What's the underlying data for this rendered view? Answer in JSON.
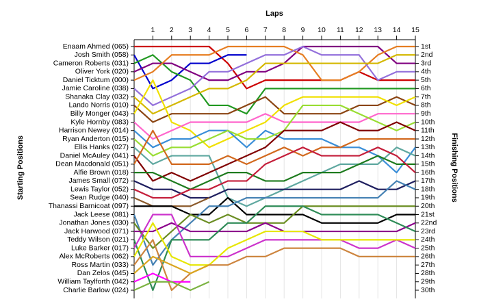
{
  "chart_data": {
    "type": "line",
    "title": "Laps",
    "y_label": "Starting Positions",
    "y2_label": "Finishing Positions",
    "categories": [
      null,
      "1",
      "2",
      "3",
      "4",
      "5",
      "6",
      "7",
      "8",
      "9",
      "10",
      "11",
      "12",
      "13",
      "14",
      "15"
    ],
    "ylim": [
      1,
      30
    ],
    "inverted": true,
    "grid": true,
    "y2ticks": [
      {
        "value": 1,
        "label": "1st"
      },
      {
        "value": 2,
        "label": "2nd"
      },
      {
        "value": 3,
        "label": "3rd"
      },
      {
        "value": 4,
        "label": "4th"
      },
      {
        "value": 5,
        "label": "5th"
      },
      {
        "value": 6,
        "label": "6th"
      },
      {
        "value": 7,
        "label": "7th"
      },
      {
        "value": 8,
        "label": "8th"
      },
      {
        "value": 9,
        "label": "9th"
      },
      {
        "value": 10,
        "label": "10th"
      },
      {
        "value": 11,
        "label": "11th"
      },
      {
        "value": 12,
        "label": "12th"
      },
      {
        "value": 13,
        "label": "13th"
      },
      {
        "value": 14,
        "label": "14th"
      },
      {
        "value": 15,
        "label": "15th"
      },
      {
        "value": 16,
        "label": "16th"
      },
      {
        "value": 17,
        "label": "17th"
      },
      {
        "value": 18,
        "label": "18th"
      },
      {
        "value": 19,
        "label": "19th"
      },
      {
        "value": 20,
        "label": "20th"
      },
      {
        "value": 21,
        "label": "21st"
      },
      {
        "value": 22,
        "label": "22nd"
      },
      {
        "value": 23,
        "label": "23rd"
      },
      {
        "value": 24,
        "label": "24th"
      },
      {
        "value": 25,
        "label": "25th"
      },
      {
        "value": 26,
        "label": "26th"
      },
      {
        "value": 27,
        "label": "27th"
      },
      {
        "value": 28,
        "label": "28th"
      },
      {
        "value": 29,
        "label": "29th"
      },
      {
        "value": 30,
        "label": "30th"
      }
    ],
    "series": [
      {
        "name": "Enaam Ahmed (065)",
        "color": "#cc0000",
        "values": [
          1,
          1,
          1,
          1,
          1,
          3,
          6,
          5,
          5,
          5,
          5,
          5,
          4,
          5,
          5,
          5
        ]
      },
      {
        "name": "Josh Smith (058)",
        "color": "#0000cc",
        "values": [
          2,
          6,
          5,
          3,
          3,
          2,
          2,
          null,
          null,
          null,
          null,
          null,
          null,
          null,
          null,
          null
        ]
      },
      {
        "name": "Cameron Roberts (031)",
        "color": "#229922",
        "values": [
          3,
          2,
          4,
          5,
          8,
          8,
          9,
          6,
          6,
          6,
          6,
          6,
          6,
          6,
          6,
          6
        ]
      },
      {
        "name": "Oliver York (020)",
        "color": "#800080",
        "values": [
          4,
          3,
          3,
          4,
          5,
          5,
          4,
          4,
          3,
          1,
          1,
          1,
          1,
          1,
          3,
          3
        ]
      },
      {
        "name": "Daniel Ticktum (000)",
        "color": "#e67e22",
        "values": [
          5,
          4,
          2,
          2,
          2,
          1,
          1,
          1,
          1,
          2,
          5,
          5,
          4,
          2,
          1,
          1
        ]
      },
      {
        "name": "Jamie Caroline (038)",
        "color": "#9370db",
        "values": [
          6,
          8,
          7,
          6,
          4,
          4,
          3,
          2,
          2,
          1,
          2,
          2,
          2,
          5,
          4,
          4
        ]
      },
      {
        "name": "Shanaka Clay (032)",
        "color": "#d4b800",
        "values": [
          7,
          9,
          8,
          7,
          6,
          6,
          5,
          3,
          3,
          3,
          3,
          3,
          3,
          3,
          2,
          2
        ]
      },
      {
        "name": "Lando Norris (010)",
        "color": "#8b4513",
        "values": [
          8,
          10,
          9,
          9,
          9,
          9,
          8,
          7,
          9,
          9,
          9,
          9,
          8,
          8,
          7,
          8
        ]
      },
      {
        "name": "Billy Monger (043)",
        "color": "#f0e000",
        "values": [
          9,
          5,
          10,
          11,
          13,
          12,
          11,
          10,
          8,
          7,
          7,
          7,
          7,
          7,
          8,
          7
        ]
      },
      {
        "name": "Kyle Hornby (083)",
        "color": "#ff66cc",
        "values": [
          10,
          12,
          11,
          10,
          10,
          10,
          10,
          9,
          10,
          10,
          10,
          10,
          10,
          9,
          9,
          9
        ]
      },
      {
        "name": "Harrison Newey (014)",
        "color": "#3a8ed8",
        "values": [
          11,
          13,
          12,
          12,
          11,
          11,
          13,
          11,
          12,
          12,
          12,
          13,
          13,
          14,
          16,
          13
        ]
      },
      {
        "name": "Ryan Anderton (015)",
        "color": "#99dd33",
        "values": [
          12,
          14,
          13,
          13,
          12,
          11,
          12,
          12,
          11,
          8,
          8,
          8,
          9,
          10,
          11,
          10
        ]
      },
      {
        "name": "Ellis Hanks (027)",
        "color": "#5fa8a0",
        "values": [
          13,
          15,
          14,
          14,
          14,
          19,
          20,
          19,
          18,
          17,
          16,
          15,
          15,
          15,
          13,
          14
        ]
      },
      {
        "name": "Daniel McAuley (041)",
        "color": "#800000",
        "values": [
          14,
          17,
          16,
          17,
          16,
          15,
          14,
          13,
          11,
          11,
          11,
          10,
          11,
          11,
          10,
          11
        ]
      },
      {
        "name": "Dean Macdonald (051)",
        "color": "#d2691e",
        "values": [
          15,
          11,
          15,
          15,
          15,
          14,
          15,
          14,
          13,
          14,
          13,
          13,
          12,
          12,
          12,
          12
        ]
      },
      {
        "name": "Alfie Brown (018)",
        "color": "#1e7b1e",
        "values": [
          16,
          16,
          17,
          18,
          17,
          16,
          16,
          17,
          17,
          16,
          16,
          16,
          15,
          14,
          15,
          15
        ]
      },
      {
        "name": "James Small (072)",
        "color": "#1f1f5f",
        "values": [
          17,
          18,
          18,
          19,
          19,
          18,
          18,
          18,
          18,
          18,
          18,
          18,
          17,
          18,
          18,
          17
        ]
      },
      {
        "name": "Lewis Taylor (052)",
        "color": "#c41e3a",
        "values": [
          18,
          19,
          19,
          18,
          18,
          17,
          17,
          15,
          14,
          13,
          14,
          14,
          14,
          13,
          14,
          16
        ]
      },
      {
        "name": "Sean Rudge (040)",
        "color": "#8b5a2b",
        "values": [
          19,
          20,
          20,
          20,
          19,
          null,
          null,
          null,
          null,
          null,
          null,
          null,
          null,
          null,
          null,
          null
        ]
      },
      {
        "name": "Thanassi Barnicoat (097)",
        "color": "#000000",
        "values": [
          20,
          20,
          20,
          21,
          21,
          19,
          21,
          21,
          21,
          21,
          22,
          22,
          22,
          22,
          21,
          21
        ]
      },
      {
        "name": "Jack Leese (081)",
        "color": "#4682b4",
        "values": [
          21,
          27,
          24,
          22,
          20,
          20,
          19,
          19,
          19,
          19,
          19,
          19,
          19,
          19,
          17,
          18
        ]
      },
      {
        "name": "Jonathan Jones (030)",
        "color": "#6b8e23",
        "values": [
          22,
          25,
          23,
          21,
          22,
          21,
          22,
          22,
          22,
          20,
          20,
          20,
          20,
          20,
          20,
          20
        ]
      },
      {
        "name": "Jack Harwood (071)",
        "color": "#8b008b",
        "values": [
          23,
          23,
          22,
          23,
          23,
          23,
          23,
          22,
          23,
          23,
          23,
          23,
          23,
          23,
          23,
          22
        ]
      },
      {
        "name": "Teddy Wilson (021)",
        "color": "#2e8b57",
        "values": [
          24,
          30,
          24,
          24,
          24,
          22,
          22,
          20,
          20,
          20,
          21,
          21,
          21,
          21,
          22,
          23
        ]
      },
      {
        "name": "Luke Barker (017)",
        "color": "#cc33cc",
        "values": [
          25,
          21,
          21,
          26,
          26,
          26,
          25,
          24,
          24,
          24,
          24,
          24,
          25,
          25,
          24,
          25
        ]
      },
      {
        "name": "Alex McRoberts (062)",
        "color": "#e6e600",
        "values": [
          26,
          22,
          26,
          27,
          27,
          25,
          24,
          23,
          23,
          23,
          24,
          24,
          24,
          24,
          24,
          24
        ]
      },
      {
        "name": "Ross Martin (033)",
        "color": "#cd853f",
        "values": [
          27,
          24,
          30,
          28,
          27,
          27,
          26,
          26,
          25,
          25,
          25,
          25,
          26,
          26,
          26,
          26
        ]
      },
      {
        "name": "Dan Zelos (045)",
        "color": "#daa520",
        "values": [
          28,
          26,
          27,
          28,
          27,
          null,
          null,
          null,
          null,
          null,
          null,
          null,
          null,
          null,
          null,
          null
        ]
      },
      {
        "name": "William Taylforth (042)",
        "color": "#ff00ff",
        "values": [
          29,
          28,
          29,
          29,
          null,
          null,
          null,
          null,
          null,
          null,
          null,
          null,
          null,
          null,
          null,
          null
        ]
      },
      {
        "name": "Charlie Barlow (024)",
        "color": "#7cb342",
        "values": [
          30,
          29,
          29,
          30,
          29,
          null,
          null,
          null,
          null,
          null,
          null,
          null,
          null,
          null,
          null,
          null
        ]
      }
    ]
  }
}
